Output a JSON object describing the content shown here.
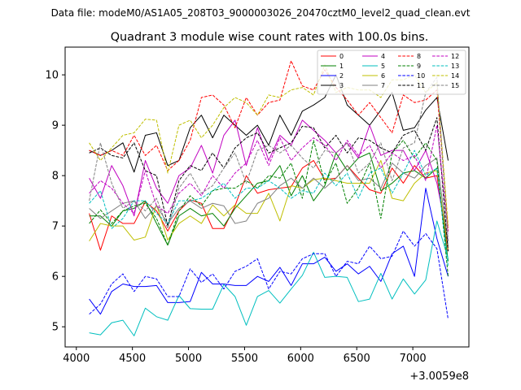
{
  "header": "Data file: modeM0/AS1A05_208T03_9000003026_20470cztM0_level2_quad_clean.evt",
  "chart_data": {
    "type": "line",
    "title": "Quadrant 3 module wise count rates with 100.0s bins.",
    "xlabel": "",
    "ylabel": "",
    "offset_label": "+3.0059e8",
    "xlim": [
      3900,
      7500
    ],
    "ylim": [
      4.6,
      10.55
    ],
    "xticks": [
      4000,
      4500,
      5000,
      5500,
      6000,
      6500,
      7000
    ],
    "yticks": [
      5,
      6,
      7,
      8,
      9,
      10
    ],
    "legend_position": "top-right",
    "x": [
      4115,
      4215,
      4315,
      4415,
      4515,
      4615,
      4715,
      4815,
      4915,
      5015,
      5115,
      5215,
      5315,
      5415,
      5515,
      5615,
      5715,
      5815,
      5915,
      6015,
      6115,
      6215,
      6315,
      6415,
      6515,
      6615,
      6715,
      6815,
      6915,
      7015,
      7115,
      7215,
      7315
    ],
    "series": [
      {
        "name": "0",
        "color": "#ff0000",
        "dash": "solid",
        "values": [
          7.25,
          6.52,
          7.2,
          7.05,
          7.05,
          7.48,
          7.3,
          6.9,
          7.3,
          7.52,
          7.45,
          6.95,
          6.95,
          7.4,
          8.0,
          7.65,
          7.72,
          7.75,
          7.78,
          8.15,
          8.3,
          7.92,
          7.95,
          8.2,
          7.95,
          7.72,
          7.65,
          8.15,
          7.85,
          8.2,
          7.95,
          8.0,
          6.5
        ]
      },
      {
        "name": "1",
        "color": "#008000",
        "dash": "solid",
        "values": [
          7.2,
          7.2,
          7.0,
          7.3,
          7.35,
          7.5,
          7.05,
          6.62,
          7.2,
          7.35,
          7.2,
          7.25,
          7.0,
          7.35,
          7.6,
          7.85,
          7.9,
          8.2,
          7.6,
          8.0,
          7.5,
          7.8,
          8.45,
          8.1,
          8.35,
          8.45,
          7.7,
          7.85,
          8.05,
          8.1,
          7.95,
          8.15,
          6.3
        ]
      },
      {
        "name": "2",
        "color": "#0000ff",
        "dash": "solid",
        "values": [
          5.55,
          5.25,
          5.7,
          5.85,
          5.8,
          5.8,
          5.82,
          5.48,
          5.48,
          5.5,
          6.08,
          5.85,
          5.85,
          5.82,
          5.82,
          6.0,
          5.9,
          6.18,
          5.82,
          6.25,
          6.25,
          6.38,
          6.1,
          6.25,
          6.05,
          6.2,
          5.9,
          6.45,
          6.6,
          6.0,
          7.75,
          6.75,
          6.0
        ]
      },
      {
        "name": "3",
        "color": "#000000",
        "dash": "solid",
        "values": [
          8.5,
          8.4,
          8.5,
          8.65,
          8.07,
          8.8,
          8.85,
          8.2,
          8.3,
          8.95,
          9.2,
          8.75,
          9.2,
          9.0,
          8.8,
          9.0,
          8.6,
          9.2,
          8.8,
          9.28,
          9.4,
          9.55,
          10.0,
          9.4,
          9.2,
          9.0,
          9.3,
          9.65,
          8.9,
          8.95,
          9.3,
          9.55,
          8.3
        ]
      },
      {
        "name": "4",
        "color": "#c000c0",
        "dash": "solid",
        "values": [
          7.95,
          7.55,
          8.2,
          7.8,
          7.2,
          8.3,
          7.75,
          7.45,
          8.0,
          8.15,
          8.6,
          8.05,
          8.8,
          9.1,
          8.2,
          8.95,
          8.3,
          8.8,
          8.6,
          9.1,
          8.9,
          8.7,
          8.45,
          8.65,
          8.35,
          9.0,
          8.4,
          8.5,
          8.5,
          8.1,
          8.5,
          7.85,
          6.7
        ]
      },
      {
        "name": "5",
        "color": "#00bfbf",
        "dash": "solid",
        "values": [
          4.88,
          4.84,
          5.08,
          5.13,
          4.82,
          5.37,
          5.2,
          5.13,
          5.62,
          5.36,
          5.35,
          5.35,
          5.84,
          5.6,
          5.03,
          5.6,
          5.72,
          5.47,
          5.75,
          6.02,
          6.48,
          5.98,
          6.0,
          5.98,
          5.5,
          5.55,
          6.06,
          5.55,
          5.95,
          5.65,
          5.93,
          7.1,
          6.35
        ]
      },
      {
        "name": "6",
        "color": "#bfbf00",
        "dash": "solid",
        "values": [
          6.7,
          7.05,
          7.0,
          7.0,
          6.72,
          6.78,
          7.42,
          6.72,
          7.05,
          7.2,
          7.05,
          7.42,
          7.2,
          7.42,
          7.25,
          7.25,
          7.65,
          7.1,
          7.8,
          7.75,
          7.92,
          7.95,
          7.9,
          7.85,
          7.85,
          7.85,
          8.3,
          7.55,
          7.5,
          7.85,
          8.05,
          8.1,
          6.55
        ]
      },
      {
        "name": "7",
        "color": "#808080",
        "dash": "solid",
        "values": [
          7.35,
          7.15,
          7.3,
          7.45,
          7.5,
          7.15,
          7.4,
          7.05,
          7.35,
          7.5,
          7.35,
          7.45,
          7.4,
          7.05,
          7.1,
          7.45,
          7.55,
          7.8,
          7.95,
          7.75,
          7.95,
          7.75,
          7.95,
          8.2,
          7.9,
          7.95,
          7.75,
          8.25,
          8.05,
          7.95,
          8.2,
          8.35,
          6.6
        ]
      },
      {
        "name": "8",
        "color": "#ff0000",
        "dash": "dashed",
        "values": [
          8.5,
          8.4,
          8.5,
          8.4,
          8.8,
          8.4,
          8.6,
          8.1,
          8.3,
          8.7,
          9.55,
          9.6,
          9.4,
          8.95,
          9.55,
          9.2,
          9.45,
          9.5,
          10.28,
          9.78,
          9.7,
          10.1,
          9.75,
          9.5,
          9.2,
          9.45,
          9.15,
          8.85,
          9.6,
          9.45,
          9.5,
          9.7,
          6.9
        ]
      },
      {
        "name": "9",
        "color": "#008000",
        "dash": "dashed",
        "values": [
          7.05,
          7.32,
          7.05,
          7.3,
          7.4,
          7.45,
          7.15,
          6.62,
          7.3,
          7.6,
          7.4,
          7.7,
          7.75,
          7.75,
          7.9,
          7.75,
          8.0,
          7.95,
          8.25,
          7.55,
          8.7,
          7.85,
          8.25,
          7.45,
          7.75,
          8.25,
          7.15,
          8.45,
          8.7,
          8.35,
          8.65,
          8.3,
          6.0
        ]
      },
      {
        "name": "10",
        "color": "#0000ff",
        "dash": "dashed",
        "values": [
          5.25,
          5.45,
          5.85,
          6.05,
          5.7,
          6.0,
          5.95,
          5.6,
          5.6,
          6.15,
          5.88,
          6.05,
          5.75,
          6.1,
          6.2,
          6.35,
          5.75,
          6.1,
          6.05,
          6.35,
          6.45,
          6.45,
          6.0,
          6.3,
          6.25,
          6.6,
          6.35,
          6.4,
          6.9,
          6.6,
          6.85,
          6.55,
          5.15
        ]
      },
      {
        "name": "11",
        "color": "#000000",
        "dash": "dashed",
        "values": [
          8.45,
          8.55,
          8.4,
          8.35,
          8.65,
          8.1,
          8.0,
          7.0,
          7.9,
          8.2,
          8.1,
          8.45,
          8.15,
          8.55,
          8.75,
          8.85,
          8.45,
          8.55,
          8.65,
          8.98,
          8.95,
          8.55,
          8.8,
          8.45,
          8.75,
          8.7,
          8.55,
          8.45,
          8.8,
          8.9,
          8.5,
          9.15,
          6.5
        ]
      },
      {
        "name": "12",
        "color": "#c000c0",
        "dash": "dashed",
        "values": [
          7.65,
          7.9,
          7.75,
          7.45,
          7.25,
          8.1,
          7.4,
          7.25,
          7.65,
          7.85,
          7.6,
          8.0,
          7.75,
          8.05,
          8.25,
          8.7,
          8.2,
          8.75,
          8.3,
          8.55,
          8.75,
          8.6,
          8.3,
          8.7,
          8.4,
          8.6,
          8.15,
          8.45,
          8.3,
          8.4,
          7.9,
          9.0,
          6.85
        ]
      },
      {
        "name": "13",
        "color": "#00bfbf",
        "dash": "dashed",
        "values": [
          7.45,
          7.7,
          6.95,
          7.15,
          7.5,
          7.5,
          7.25,
          7.05,
          7.5,
          7.5,
          7.55,
          7.7,
          7.85,
          7.55,
          7.75,
          7.75,
          7.9,
          7.75,
          7.55,
          7.7,
          7.65,
          8.05,
          7.8,
          8.05,
          7.55,
          8.05,
          8.15,
          7.65,
          8.05,
          8.5,
          8.0,
          8.15,
          6.2
        ]
      },
      {
        "name": "14",
        "color": "#bfbf00",
        "dash": "dashed",
        "values": [
          8.65,
          8.3,
          8.55,
          8.8,
          8.85,
          9.12,
          9.1,
          8.05,
          9.0,
          9.1,
          8.75,
          9.0,
          9.35,
          9.55,
          9.45,
          9.2,
          9.6,
          9.55,
          9.7,
          9.75,
          9.6,
          10.2,
          9.65,
          9.75,
          9.7,
          9.7,
          9.55,
          9.9,
          9.9,
          10.0,
          9.65,
          9.85,
          7.0
        ]
      },
      {
        "name": "15",
        "color": "#808080",
        "dash": "dashed",
        "values": [
          7.5,
          8.65,
          7.85,
          7.35,
          7.5,
          7.3,
          7.55,
          6.95,
          7.75,
          8.05,
          7.65,
          7.8,
          8.15,
          8.45,
          7.85,
          8.5,
          8.6,
          8.45,
          8.6,
          8.35,
          8.15,
          8.5,
          8.45,
          8.65,
          8.05,
          8.25,
          8.65,
          7.9,
          8.55,
          8.65,
          9.65,
          9.95,
          6.7
        ]
      }
    ]
  }
}
